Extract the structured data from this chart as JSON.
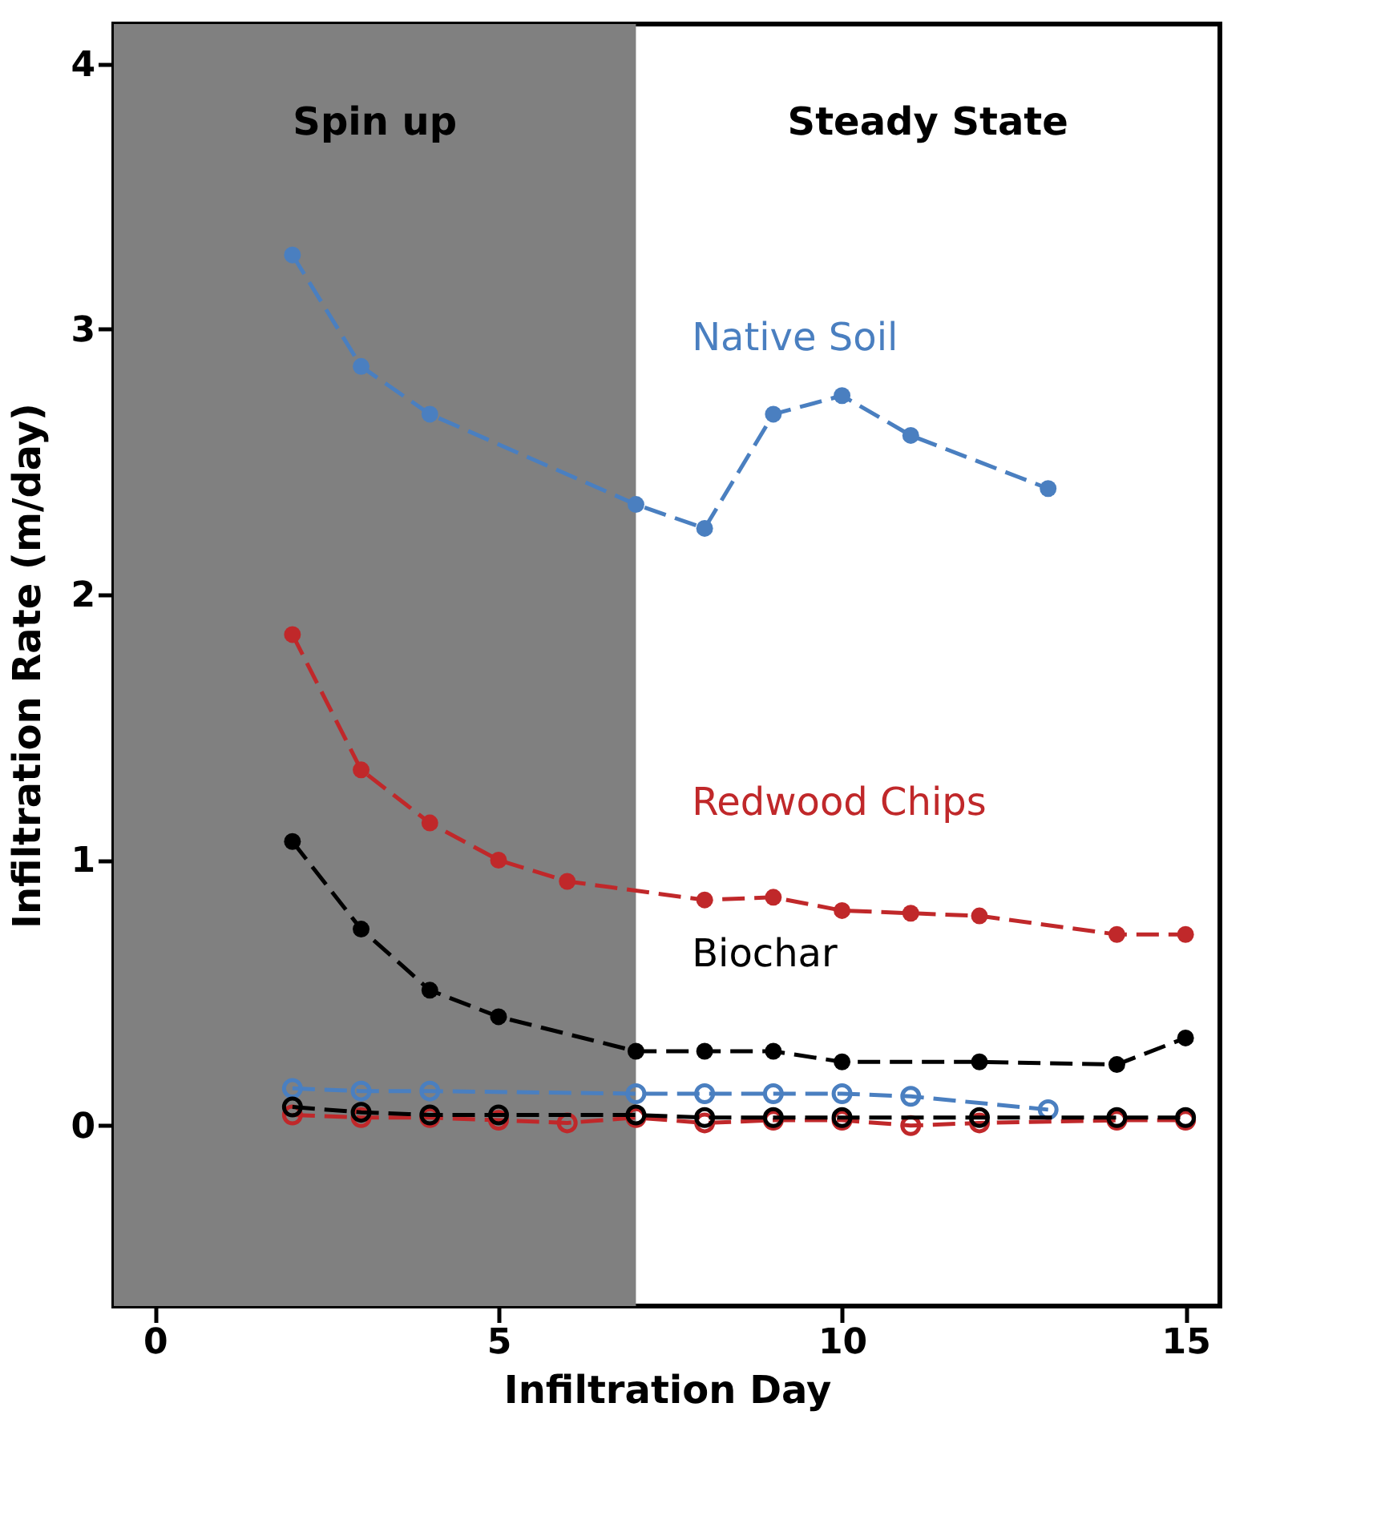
{
  "chart_data": {
    "type": "line",
    "xlabel": "Infiltration Day",
    "ylabel": "Infiltration Rate (m/day)",
    "xlim": [
      -0.6,
      15.5
    ],
    "xticks": [
      0,
      5,
      10,
      15
    ],
    "ylim": [
      -0.68,
      4.15
    ],
    "yticks": [
      0,
      1,
      2,
      3,
      4
    ],
    "grid": false,
    "marker": "circle",
    "line_style": "dashed",
    "bands": [
      {
        "axis": "x",
        "from": -0.6,
        "to": 7,
        "label": "Spin up",
        "color": "#808080"
      }
    ],
    "annotations": [
      "Steady State"
    ],
    "series": [
      {
        "name": "Native Soil",
        "color": "#4a7fc0",
        "x": [
          2,
          3,
          4,
          7,
          8,
          9,
          10,
          11,
          13
        ],
        "values": [
          3.28,
          2.86,
          2.68,
          2.34,
          2.25,
          2.68,
          2.75,
          2.6,
          2.4
        ]
      },
      {
        "name": "Redwood Chips",
        "color": "#c0282a",
        "x": [
          2,
          3,
          4,
          5,
          6,
          8,
          9,
          10,
          11,
          12,
          14,
          15
        ],
        "values": [
          1.85,
          1.34,
          1.14,
          1.0,
          0.92,
          0.85,
          0.86,
          0.81,
          0.8,
          0.79,
          0.72,
          0.72
        ]
      },
      {
        "name": "Biochar",
        "color": "#000000",
        "x": [
          2,
          3,
          4,
          5,
          7,
          8,
          9,
          10,
          12,
          14,
          15
        ],
        "values": [
          1.07,
          0.74,
          0.51,
          0.41,
          0.28,
          0.28,
          0.28,
          0.24,
          0.24,
          0.23,
          0.33
        ]
      },
      {
        "color": "#4a7fc0",
        "x": [
          2,
          3,
          4,
          7,
          8,
          9,
          10,
          11,
          13
        ],
        "values": [
          0.14,
          0.13,
          0.13,
          0.12,
          0.12,
          0.12,
          0.12,
          0.11,
          0.06
        ]
      },
      {
        "color": "#c0282a",
        "x": [
          2,
          3,
          4,
          5,
          6,
          7,
          8,
          9,
          10,
          11,
          12,
          14,
          15
        ],
        "values": [
          0.04,
          0.03,
          0.03,
          0.02,
          0.01,
          0.03,
          0.01,
          0.02,
          0.02,
          0.0,
          0.01,
          0.02,
          0.02
        ]
      },
      {
        "color": "#000000",
        "x": [
          2,
          3,
          4,
          5,
          7,
          8,
          9,
          10,
          12,
          14,
          15
        ],
        "values": [
          0.07,
          0.05,
          0.04,
          0.04,
          0.04,
          0.03,
          0.03,
          0.03,
          0.03,
          0.03,
          0.03
        ]
      }
    ]
  }
}
